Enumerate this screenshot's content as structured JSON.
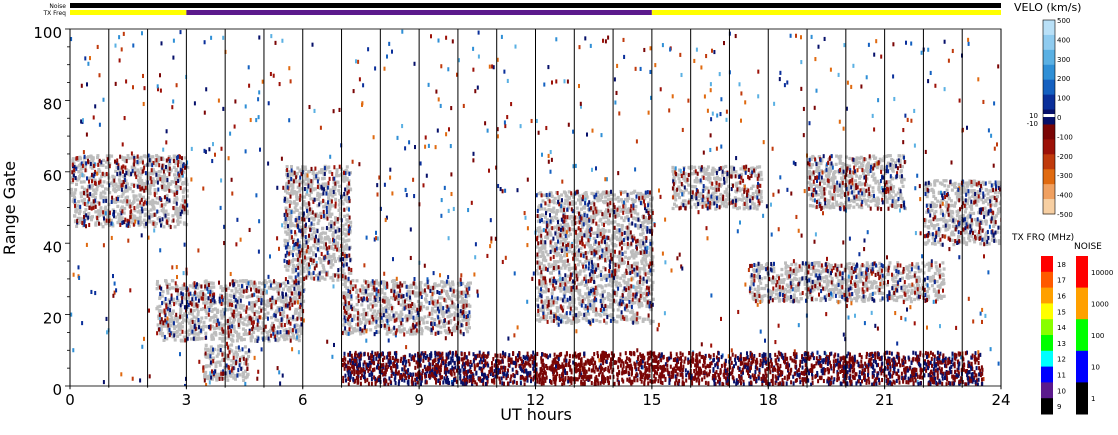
{
  "chart_data": {
    "type": "heatmap",
    "xlabel": "UT hours",
    "ylabel": "Range Gate",
    "xlim": [
      0,
      24
    ],
    "ylim": [
      0,
      100
    ],
    "x_ticks": [
      "0",
      "3",
      "6",
      "9",
      "12",
      "15",
      "18",
      "21",
      "24"
    ],
    "y_ticks": [
      "0",
      "20",
      "40",
      "60",
      "80",
      "100"
    ],
    "vertical_lines_every_hours": 1,
    "status_bars": [
      {
        "label": "Noise",
        "segments": [
          {
            "from": 0,
            "to": 24,
            "color": "#000000"
          }
        ]
      },
      {
        "label": "TX Freq",
        "segments": [
          {
            "from": 0,
            "to": 3,
            "color": "#ffff00"
          },
          {
            "from": 3,
            "to": 15,
            "color": "#5b1a8c"
          },
          {
            "from": 15,
            "to": 24,
            "color": "#ffff00"
          }
        ]
      }
    ],
    "velocity_scale": {
      "title": "VELO (km/s)",
      "ticks": [
        "500",
        "400",
        "300",
        "200",
        "100",
        "0",
        "-100",
        "-200",
        "-300",
        "-400",
        "-500"
      ],
      "small_labels": [
        "10",
        "-10"
      ],
      "colors": [
        "#b9e0f7",
        "#8fcbef",
        "#5ab0e3",
        "#2f8fd6",
        "#1460c0",
        "#0a2f9a",
        "#06106a",
        "#7a0505",
        "#9c1108",
        "#c03a0c",
        "#e06a10",
        "#f0a060",
        "#f7cfa2"
      ]
    },
    "txfreq_scale": {
      "title": "TX FRQ (MHz)",
      "ticks": [
        "18",
        "17",
        "16",
        "15",
        "14",
        "13",
        "12",
        "11",
        "10",
        "9"
      ],
      "colors": [
        "#ff0000",
        "#ff5a00",
        "#ffa000",
        "#ffff00",
        "#88ff00",
        "#00ff00",
        "#00ffff",
        "#0000ff",
        "#5b1a8c",
        "#000000"
      ]
    },
    "noise_scale": {
      "title": "NOISE",
      "ticks": [
        "10000",
        "1000",
        "100",
        "10",
        "1"
      ],
      "colors": [
        "#ff0000",
        "#ffa000",
        "#00ff00",
        "#0000ff",
        "#000000"
      ]
    },
    "ground_scatter_color": "#bdbdbd",
    "ground_scatter_regions": [
      {
        "t": [
          0.0,
          3.0
        ],
        "gate": [
          45,
          65
        ]
      },
      {
        "t": [
          2.2,
          6.0
        ],
        "gate": [
          13,
          30
        ]
      },
      {
        "t": [
          3.4,
          4.6
        ],
        "gate": [
          2,
          12
        ]
      },
      {
        "t": [
          5.5,
          7.2
        ],
        "gate": [
          30,
          62
        ]
      },
      {
        "t": [
          7.0,
          10.3
        ],
        "gate": [
          15,
          30
        ]
      },
      {
        "t": [
          12.0,
          15.0
        ],
        "gate": [
          18,
          55
        ]
      },
      {
        "t": [
          15.5,
          17.8
        ],
        "gate": [
          50,
          62
        ]
      },
      {
        "t": [
          17.5,
          22.5
        ],
        "gate": [
          24,
          35
        ]
      },
      {
        "t": [
          19.0,
          21.5
        ],
        "gate": [
          50,
          65
        ]
      },
      {
        "t": [
          22.0,
          24.0
        ],
        "gate": [
          40,
          58
        ]
      }
    ]
  }
}
